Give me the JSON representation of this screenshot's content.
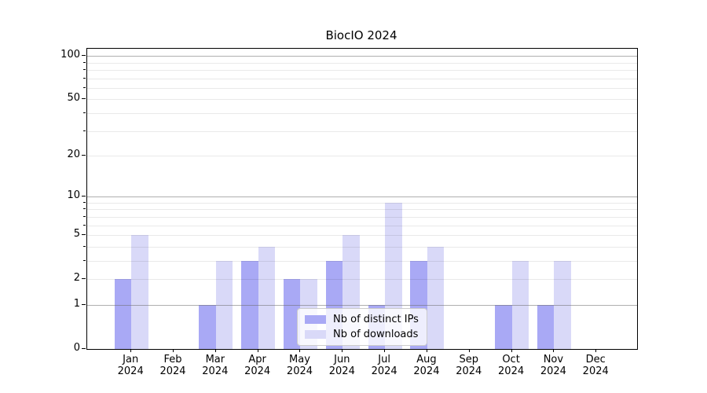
{
  "chart_data": {
    "type": "bar",
    "title": "BiocIO 2024",
    "categories": [
      "Jan",
      "Feb",
      "Mar",
      "Apr",
      "May",
      "Jun",
      "Jul",
      "Aug",
      "Sep",
      "Oct",
      "Nov",
      "Dec"
    ],
    "category_year": "2024",
    "series": [
      {
        "name": "Nb of distinct IPs",
        "color": "#a9a9f5",
        "values": [
          2,
          0,
          1,
          3,
          2,
          3,
          1,
          3,
          0,
          1,
          1,
          0
        ]
      },
      {
        "name": "Nb of downloads",
        "color": "#d9d9f8",
        "values": [
          5,
          0,
          3,
          4,
          2,
          5,
          9,
          4,
          0,
          3,
          3,
          0
        ]
      }
    ],
    "y_scale": "log1p",
    "ylim": [
      0,
      100
    ],
    "y_ticks_major": [
      0,
      1,
      2,
      5,
      10,
      20,
      50,
      100
    ],
    "y_ticks_minor": [
      3,
      4,
      6,
      7,
      8,
      9,
      30,
      40,
      60,
      70,
      80,
      90
    ],
    "y_emphasized_gridlines": [
      1,
      10,
      100
    ],
    "legend_position": "lower center",
    "grid": "horizontal"
  },
  "colors": {
    "background": "#ffffff",
    "bar_distinct_ips": "#a9a9f5",
    "bar_downloads": "#d9d9f8",
    "grid_major": "#b0b0b0",
    "grid_minor": "#e9e9e9",
    "axis": "#000000",
    "text": "#000000",
    "legend_border": "#cccccc"
  }
}
